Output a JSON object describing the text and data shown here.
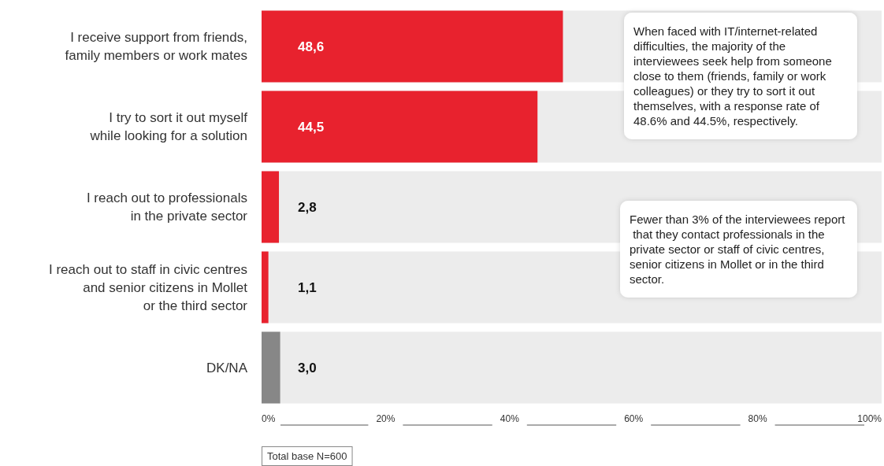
{
  "chart_data": {
    "type": "bar",
    "orientation": "horizontal",
    "categories": [
      "I receive support from friends,\nfamily members or work mates",
      "I try to sort it out myself\nwhile looking for a solution",
      "I reach out to professionals\nin the private sector",
      "I reach out to staff in civic centres\nand senior citizens in Mollet\nor the third sector",
      "DK/NA"
    ],
    "values": [
      48.6,
      44.5,
      2.8,
      1.1,
      3.0
    ],
    "value_labels": [
      "48,6",
      "44,5",
      "2,8",
      "1,1",
      "3,0"
    ],
    "colors": [
      "#e8222e",
      "#e8222e",
      "#e8222e",
      "#e8222e",
      "#878787"
    ],
    "xlim": [
      0,
      100
    ],
    "xticks": [
      {
        "value": 0,
        "label": "0%"
      },
      {
        "value": 20,
        "label": "20%"
      },
      {
        "value": 40,
        "label": "40%"
      },
      {
        "value": 60,
        "label": "60%"
      },
      {
        "value": 80,
        "label": "80%"
      },
      {
        "value": 100,
        "label": "100%"
      }
    ],
    "grid": false,
    "annotations": [
      "When faced with IT/internet-related difficulties, the majority of the interviewees seek help from someone close to them (friends, family or work colleagues) or they try to sort it out themselves, with a response rate of 48.6% and 44.5%, respectively.",
      "Fewer than 3% of the interviewees report that they contact professionals in the private sector or staff of civic centres, senior citizens in Mollet or in the third sector.",
      "Total base N=600"
    ]
  }
}
